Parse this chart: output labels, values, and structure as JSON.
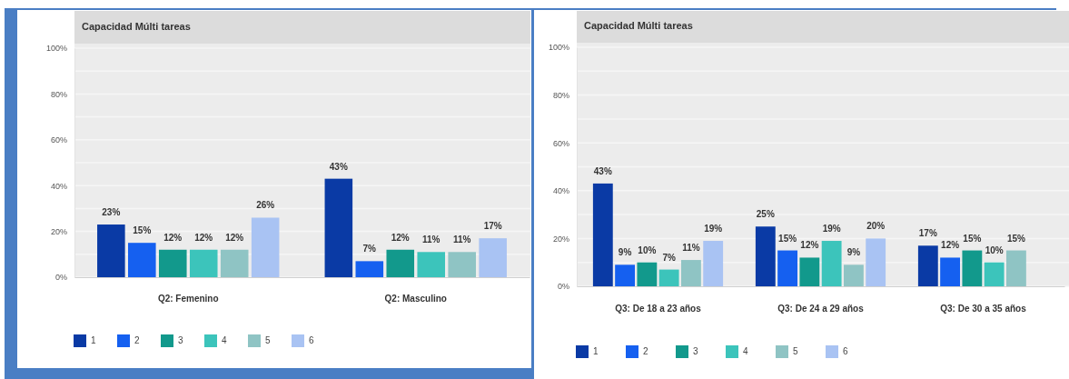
{
  "chart_data": [
    {
      "type": "bar",
      "title": "Capacidad Múlti tareas",
      "categories": [
        "Q2: Femenino",
        "Q2: Masculino"
      ],
      "series": [
        {
          "name": "1",
          "color": "#0a3aa5",
          "values": [
            23,
            43
          ],
          "value_labels": [
            "23%",
            "43%"
          ]
        },
        {
          "name": "2",
          "color": "#1560f0",
          "values": [
            15,
            7
          ],
          "value_labels": [
            "15%",
            "7%"
          ]
        },
        {
          "name": "3",
          "color": "#12998c",
          "values": [
            12,
            12
          ],
          "value_labels": [
            "12%",
            "12%"
          ]
        },
        {
          "name": "4",
          "color": "#3cc4bb",
          "values": [
            12,
            11
          ],
          "value_labels": [
            "12%",
            "11%"
          ]
        },
        {
          "name": "5",
          "color": "#8fc4c4",
          "values": [
            12,
            11
          ],
          "value_labels": [
            "12%",
            "11%"
          ]
        },
        {
          "name": "6",
          "color": "#a9c3f3",
          "values": [
            26,
            17
          ],
          "value_labels": [
            "26%",
            "17%"
          ]
        }
      ],
      "ylim": [
        0,
        100
      ],
      "yticks": [
        {
          "value": 0,
          "label": "0%"
        },
        {
          "value": 10,
          "label": null
        },
        {
          "value": 20,
          "label": "20%"
        },
        {
          "value": 30,
          "label": null
        },
        {
          "value": 40,
          "label": "40%"
        },
        {
          "value": 50,
          "label": null
        },
        {
          "value": 60,
          "label": "60%"
        },
        {
          "value": 70,
          "label": null
        },
        {
          "value": 80,
          "label": "80%"
        },
        {
          "value": 90,
          "label": null
        },
        {
          "value": 100,
          "label": "100%"
        }
      ],
      "grid": "y",
      "legend": "bottom"
    },
    {
      "type": "bar",
      "title": "Capacidad Múlti tareas",
      "categories": [
        "Q3: De 18 a 23 años",
        "Q3: De 24 a 29 años",
        "Q3: De 30 a 35 años"
      ],
      "series": [
        {
          "name": "1",
          "color": "#0a3aa5",
          "values": [
            43,
            25,
            17
          ],
          "value_labels": [
            "43%",
            "25%",
            "17%"
          ]
        },
        {
          "name": "2",
          "color": "#1560f0",
          "values": [
            9,
            15,
            12
          ],
          "value_labels": [
            "9%",
            "15%",
            "12%"
          ]
        },
        {
          "name": "3",
          "color": "#12998c",
          "values": [
            10,
            12,
            15
          ],
          "value_labels": [
            "10%",
            "12%",
            "15%"
          ]
        },
        {
          "name": "4",
          "color": "#3cc4bb",
          "values": [
            7,
            19,
            10
          ],
          "value_labels": [
            "7%",
            "19%",
            "10%"
          ]
        },
        {
          "name": "5",
          "color": "#8fc4c4",
          "values": [
            11,
            9,
            15
          ],
          "value_labels": [
            "11%",
            "9%",
            "15%"
          ]
        },
        {
          "name": "6",
          "color": "#a9c3f3",
          "values": [
            19,
            20,
            null
          ],
          "value_labels": [
            "19%",
            "20%",
            null
          ]
        }
      ],
      "ylim": [
        0,
        100
      ],
      "yticks": [
        {
          "value": 0,
          "label": "0%"
        },
        {
          "value": 10,
          "label": null
        },
        {
          "value": 20,
          "label": "20%"
        },
        {
          "value": 30,
          "label": null
        },
        {
          "value": 40,
          "label": "40%"
        },
        {
          "value": 50,
          "label": null
        },
        {
          "value": 60,
          "label": "60%"
        },
        {
          "value": 70,
          "label": null
        },
        {
          "value": 80,
          "label": "80%"
        },
        {
          "value": 90,
          "label": null
        },
        {
          "value": 100,
          "label": "100%"
        }
      ],
      "grid": "y",
      "legend": "bottom"
    }
  ]
}
